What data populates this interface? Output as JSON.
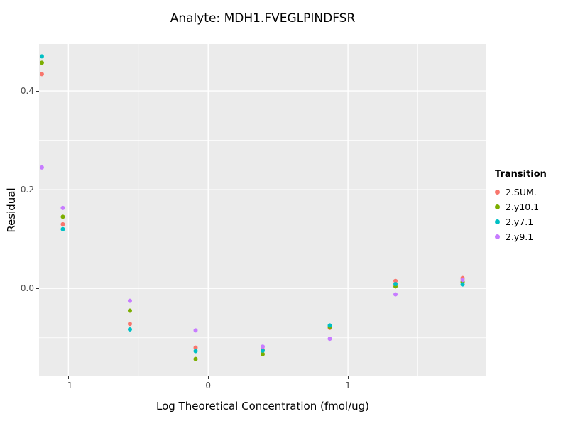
{
  "chart_data": {
    "type": "scatter",
    "title": "Analyte: MDH1.FVEGLPINDFSR",
    "xlabel": "Log Theoretical Concentration (fmol/ug)",
    "ylabel": "Residual",
    "xlim": [
      -1.21,
      1.99
    ],
    "ylim": [
      -0.178,
      0.495
    ],
    "xticks": {
      "values": [
        -1,
        0,
        1
      ],
      "labels": [
        "-1",
        "0",
        "1"
      ]
    },
    "yticks": {
      "values": [
        0.0,
        0.2,
        0.4
      ],
      "labels": [
        "0.0",
        "0.2",
        "0.4"
      ]
    },
    "x_minor": [
      -0.5,
      0.5,
      1.5
    ],
    "y_minor": [
      -0.1,
      0.1,
      0.3
    ],
    "grid": true,
    "panel_bg": "#EBEBEB",
    "legend_position": "right",
    "x": [
      -1.19,
      -1.04,
      -0.56,
      -0.09,
      0.39,
      0.87,
      1.34,
      1.82
    ],
    "series": [
      {
        "name": "2.SUM.",
        "color": "#F8766D",
        "values": [
          0.434,
          0.13,
          -0.072,
          -0.12,
          -0.124,
          -0.08,
          0.015,
          0.021
        ]
      },
      {
        "name": "2.y10.1",
        "color": "#7CAE00",
        "values": [
          0.457,
          0.145,
          -0.045,
          -0.143,
          -0.133,
          -0.078,
          0.004,
          0.013
        ]
      },
      {
        "name": "2.y7.1",
        "color": "#00BFC4",
        "values": [
          0.47,
          0.12,
          -0.083,
          -0.127,
          -0.126,
          -0.075,
          0.009,
          0.008
        ]
      },
      {
        "name": "2.y9.1",
        "color": "#C77CFF",
        "values": [
          0.245,
          0.163,
          -0.025,
          -0.085,
          -0.118,
          -0.102,
          -0.012,
          0.017
        ]
      }
    ]
  },
  "legend": {
    "title": "Transition"
  }
}
